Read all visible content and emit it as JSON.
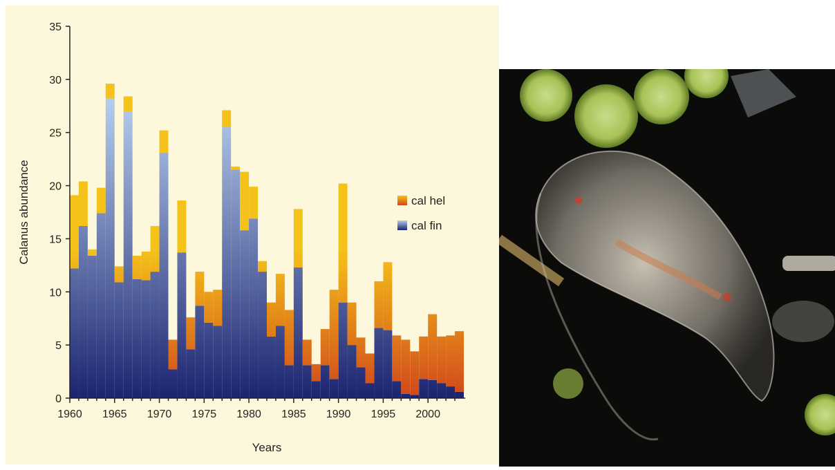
{
  "chart_data": {
    "type": "bar",
    "stacked": true,
    "title": "",
    "xlabel": "Years",
    "ylabel": "Calanus abundance",
    "ylim": [
      0,
      35
    ],
    "yticks": [
      0,
      5,
      10,
      15,
      20,
      25,
      30,
      35
    ],
    "xticks": [
      1960,
      1965,
      1970,
      1975,
      1980,
      1985,
      1990,
      1995,
      2000
    ],
    "legend_position": "right",
    "background": "#fdf8dc",
    "categories": [
      1960,
      1961,
      1962,
      1963,
      1964,
      1965,
      1966,
      1967,
      1968,
      1969,
      1970,
      1971,
      1972,
      1973,
      1974,
      1975,
      1976,
      1977,
      1978,
      1979,
      1980,
      1981,
      1982,
      1983,
      1984,
      1985,
      1986,
      1987,
      1988,
      1989,
      1990,
      1991,
      1992,
      1993,
      1994,
      1995,
      1996,
      1997,
      1998,
      1999,
      2000,
      2001,
      2002,
      2003
    ],
    "series": [
      {
        "name": "cal fin",
        "color_light": "#b5cdec",
        "color_dark": "#1c2470",
        "values": [
          12.2,
          16.2,
          13.4,
          17.4,
          28.2,
          10.9,
          27.0,
          11.2,
          11.1,
          11.9,
          23.1,
          2.7,
          13.7,
          4.6,
          8.7,
          7.1,
          6.8,
          25.5,
          21.5,
          15.8,
          16.9,
          11.9,
          5.8,
          6.8,
          3.1,
          12.3,
          3.1,
          1.6,
          3.1,
          1.8,
          9.0,
          5.0,
          2.9,
          1.4,
          6.6,
          6.4,
          1.6,
          0.4,
          0.3,
          1.8,
          1.7,
          1.4,
          1.1,
          0.6
        ]
      },
      {
        "name": "cal hel",
        "color_light": "#f5c21a",
        "color_dark": "#d0471b",
        "values": [
          6.9,
          4.2,
          0.6,
          2.4,
          1.4,
          1.5,
          1.4,
          2.2,
          2.7,
          4.3,
          2.1,
          2.8,
          4.9,
          3.0,
          3.2,
          2.9,
          3.4,
          1.6,
          0.3,
          5.5,
          3.0,
          1.0,
          3.2,
          4.9,
          5.2,
          5.5,
          2.4,
          1.6,
          3.4,
          8.4,
          11.2,
          4.0,
          2.8,
          2.8,
          4.4,
          6.4,
          4.3,
          5.1,
          4.1,
          4.0,
          6.2,
          4.4,
          4.8,
          5.7
        ]
      }
    ]
  },
  "photo": {
    "subject": "copepod-specimen"
  }
}
